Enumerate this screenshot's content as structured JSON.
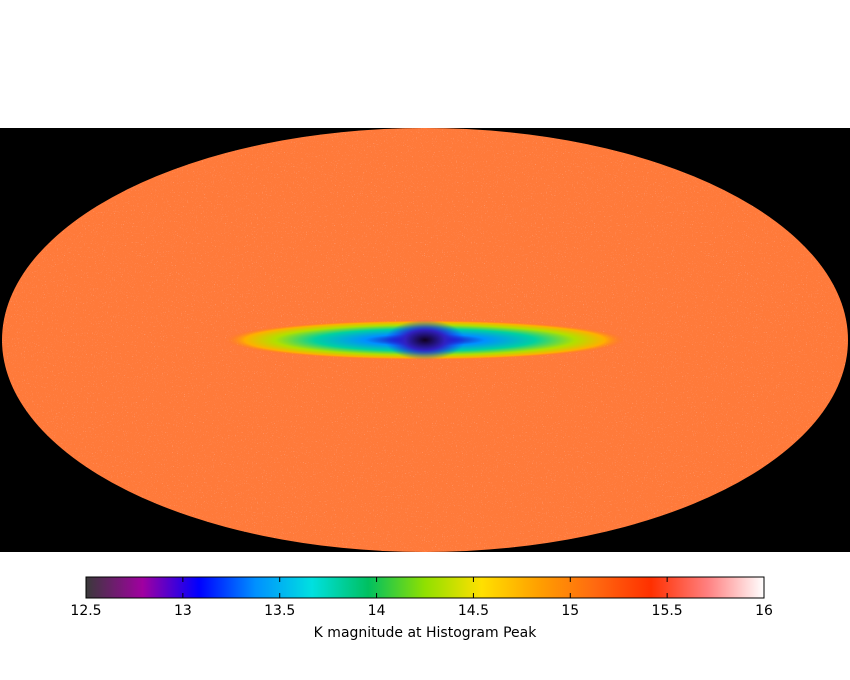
{
  "chart_data": {
    "type": "colorbar",
    "xlabel": "K magnitude at Histogram Peak",
    "xlim": [
      12.5,
      16
    ],
    "xticks": [
      12.5,
      13,
      13.5,
      14,
      14.5,
      15,
      15.5,
      16
    ],
    "colormap": [
      "#3a3a3a",
      "#a000a0",
      "#0000ff",
      "#0090ff",
      "#00e0e0",
      "#00c060",
      "#90e000",
      "#ffe000",
      "#ffa000",
      "#ff6a10",
      "#ff3000",
      "#ff8080",
      "#ffffff"
    ]
  }
}
